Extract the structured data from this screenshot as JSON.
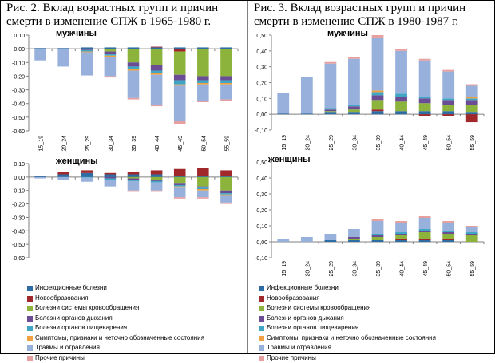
{
  "captions": {
    "left": "Рис. 2. Вклад возрастных групп и причин смерти в изменение СПЖ в 1965-1980 г.",
    "right": "Рис. 3. Вклад возрастных групп и причин смерти в изменение СПЖ в 1980-1987 г."
  },
  "legend": [
    {
      "label": "Инфекционные болезни",
      "color": "#2E6CA4"
    },
    {
      "label": "Новообразования",
      "color": "#A0282A"
    },
    {
      "label": "Болезни системы кровообращения",
      "color": "#8CB43C"
    },
    {
      "label": "Болезни органов дыхания",
      "color": "#6A4D94"
    },
    {
      "label": "Болезни органов пищеварения",
      "color": "#3FA6C4"
    },
    {
      "label": "Симптомы, признаки и неточно обозначенные состояния",
      "color": "#F0A040"
    },
    {
      "label": "Травмы и отравления",
      "color": "#98B0DC"
    },
    {
      "label": "Прочие причины",
      "color": "#E6A0A0"
    }
  ],
  "chart_data": [
    {
      "type": "bar",
      "stacked": true,
      "subtitle": "мужчины",
      "categories": [
        "15_19",
        "20_24",
        "25_29",
        "30_34",
        "35_39",
        "40_44",
        "45_49",
        "50_54",
        "55_59"
      ],
      "ylim": [
        -0.6,
        0.1
      ],
      "yticks": [
        "0,10",
        "0,00",
        "-0,10",
        "-0,20",
        "-0,30",
        "-0,40",
        "-0,50",
        "-0,60"
      ],
      "grid": false,
      "series": [
        {
          "name": "Инфекционные болезни",
          "values": [
            0.005,
            0.005,
            0.01,
            0.01,
            0.01,
            0.01,
            0.01,
            0.01,
            0.01
          ]
        },
        {
          "name": "Новообразования",
          "values": [
            0.0,
            0.0,
            0.0,
            0.0,
            0.0,
            0.005,
            -0.02,
            0.0,
            0.0
          ]
        },
        {
          "name": "Болезни системы кровообращения",
          "values": [
            0.0,
            0.0,
            0.0,
            -0.02,
            -0.1,
            -0.12,
            -0.17,
            -0.2,
            -0.2
          ]
        },
        {
          "name": "Болезни органов дыхания",
          "values": [
            0.0,
            0.0,
            -0.01,
            -0.02,
            -0.03,
            -0.04,
            -0.04,
            -0.03,
            -0.03
          ]
        },
        {
          "name": "Болезни органов пищеварения",
          "values": [
            -0.005,
            0.0,
            -0.01,
            -0.01,
            -0.02,
            -0.02,
            -0.03,
            -0.02,
            -0.02
          ]
        },
        {
          "name": "Симптомы, признаки и неточно обозначенные состояния",
          "values": [
            0.0,
            0.0,
            -0.005,
            -0.01,
            -0.01,
            -0.01,
            -0.01,
            -0.01,
            -0.01
          ]
        },
        {
          "name": "Травмы и отравления",
          "values": [
            -0.08,
            -0.13,
            -0.17,
            -0.14,
            -0.2,
            -0.22,
            -0.26,
            -0.12,
            -0.11
          ]
        },
        {
          "name": "Прочие причины",
          "values": [
            0.0,
            0.0,
            0.0,
            -0.01,
            -0.01,
            -0.01,
            -0.02,
            -0.01,
            -0.01
          ]
        }
      ]
    },
    {
      "type": "bar",
      "stacked": true,
      "subtitle": "женщины",
      "categories": [
        "15_19",
        "20_24",
        "25_29",
        "30_34",
        "35_39",
        "40_44",
        "45_49",
        "50_54",
        "55_59"
      ],
      "ylim": [
        -0.6,
        0.1
      ],
      "yticks": [
        "0,10",
        "0,00",
        "-0,10",
        "-0,20",
        "-0,30",
        "-0,40",
        "-0,50",
        "-0,60"
      ],
      "grid": false,
      "series": [
        {
          "name": "Инфекционные болезни",
          "values": [
            0.01,
            0.02,
            0.03,
            0.02,
            0.02,
            0.02,
            0.01,
            0.01,
            0.01
          ]
        },
        {
          "name": "Новообразования",
          "values": [
            0.0,
            0.02,
            0.02,
            0.01,
            0.02,
            0.03,
            0.05,
            0.06,
            0.04
          ]
        },
        {
          "name": "Болезни системы кровообращения",
          "values": [
            0.0,
            0.0,
            0.0,
            0.0,
            -0.01,
            -0.02,
            -0.05,
            -0.07,
            -0.1
          ]
        },
        {
          "name": "Болезни органов дыхания",
          "values": [
            0.0,
            0.0,
            0.0,
            -0.01,
            -0.01,
            -0.01,
            -0.01,
            -0.01,
            -0.02
          ]
        },
        {
          "name": "Болезни органов пищеварения",
          "values": [
            0.0,
            0.0,
            -0.005,
            -0.01,
            -0.01,
            -0.01,
            -0.01,
            -0.01,
            -0.01
          ]
        },
        {
          "name": "Симптомы, признаки и неточно обозначенные состояния",
          "values": [
            0.0,
            0.0,
            0.0,
            0.0,
            0.0,
            0.0,
            -0.01,
            -0.01,
            -0.01
          ]
        },
        {
          "name": "Травмы и отравления",
          "values": [
            -0.01,
            -0.02,
            -0.03,
            -0.05,
            -0.07,
            -0.06,
            -0.07,
            -0.05,
            -0.05
          ]
        },
        {
          "name": "Прочие причины",
          "values": [
            0.0,
            0.0,
            0.0,
            0.0,
            -0.01,
            -0.01,
            -0.01,
            -0.01,
            -0.01
          ]
        }
      ]
    },
    {
      "type": "bar",
      "stacked": true,
      "subtitle": "мужчины",
      "categories": [
        "15_19",
        "20_24",
        "25_29",
        "30_34",
        "35_39",
        "40_44",
        "45_49",
        "50_54",
        "55_59"
      ],
      "ylim": [
        -0.1,
        0.5
      ],
      "yticks": [
        "0,50",
        "0,40",
        "0,30",
        "0,20",
        "0,10",
        "0,00",
        "-0,10"
      ],
      "grid": false,
      "series": [
        {
          "name": "Инфекционные болезни",
          "values": [
            0.005,
            0.005,
            0.01,
            0.01,
            0.02,
            0.02,
            0.02,
            0.02,
            0.01
          ]
        },
        {
          "name": "Новообразования",
          "values": [
            0.0,
            0.0,
            0.0,
            0.0,
            0.01,
            0.0,
            -0.01,
            -0.01,
            -0.05
          ]
        },
        {
          "name": "Болезни системы кровообращения",
          "values": [
            0.0,
            0.0,
            0.01,
            0.02,
            0.06,
            0.06,
            0.05,
            0.04,
            0.05
          ]
        },
        {
          "name": "Болезни органов дыхания",
          "values": [
            0.0,
            0.0,
            0.01,
            0.02,
            0.03,
            0.03,
            0.03,
            0.03,
            0.03
          ]
        },
        {
          "name": "Болезни органов пищеварения",
          "values": [
            0.0,
            0.0,
            0.01,
            0.01,
            0.02,
            0.02,
            0.01,
            0.01,
            0.01
          ]
        },
        {
          "name": "Симптомы, признаки и неточно обозначенные состояния",
          "values": [
            0.0,
            0.0,
            0.0,
            0.0,
            0.01,
            0.0,
            0.0,
            0.0,
            0.01
          ]
        },
        {
          "name": "Травмы и отравления",
          "values": [
            0.13,
            0.23,
            0.28,
            0.29,
            0.33,
            0.27,
            0.23,
            0.17,
            0.07
          ]
        },
        {
          "name": "Прочие причины",
          "values": [
            0.0,
            0.0,
            0.01,
            0.01,
            0.02,
            0.01,
            0.01,
            0.01,
            0.01
          ]
        }
      ]
    },
    {
      "type": "bar",
      "stacked": true,
      "subtitle": "женщины",
      "categories": [
        "15_19",
        "20_24",
        "25_29",
        "30_34",
        "35_39",
        "40_44",
        "45_49",
        "50_54",
        "55_59"
      ],
      "ylim": [
        -0.1,
        0.5
      ],
      "yticks": [
        "0,50",
        "0,40",
        "0,30",
        "0,20",
        "0,10",
        "0,00",
        "-0,10"
      ],
      "grid": false,
      "series": [
        {
          "name": "Инфекционные болезни",
          "values": [
            0.0,
            0.0,
            0.01,
            0.01,
            0.01,
            0.01,
            0.01,
            0.01,
            0.0
          ]
        },
        {
          "name": "Новообразования",
          "values": [
            0.0,
            0.0,
            0.0,
            0.0,
            0.0,
            0.01,
            0.01,
            0.01,
            0.0
          ]
        },
        {
          "name": "Болезни системы кровообращения",
          "values": [
            0.0,
            0.0,
            0.0,
            0.01,
            0.02,
            0.02,
            0.04,
            0.03,
            0.04
          ]
        },
        {
          "name": "Болезни органов дыхания",
          "values": [
            0.0,
            0.0,
            0.0,
            0.01,
            0.01,
            0.01,
            0.01,
            0.01,
            0.01
          ]
        },
        {
          "name": "Болезни органов пищеварения",
          "values": [
            0.0,
            0.0,
            0.0,
            0.0,
            0.01,
            0.01,
            0.01,
            0.01,
            0.01
          ]
        },
        {
          "name": "Симптомы, признаки и неточно обозначенные состояния",
          "values": [
            0.0,
            0.0,
            0.0,
            0.0,
            0.0,
            0.0,
            0.0,
            0.0,
            0.0
          ]
        },
        {
          "name": "Травмы и отравления",
          "values": [
            0.02,
            0.03,
            0.04,
            0.05,
            0.08,
            0.06,
            0.07,
            0.05,
            0.03
          ]
        },
        {
          "name": "Прочие причины",
          "values": [
            0.0,
            0.0,
            0.0,
            0.0,
            0.01,
            0.01,
            0.01,
            0.01,
            0.01
          ]
        }
      ]
    }
  ]
}
